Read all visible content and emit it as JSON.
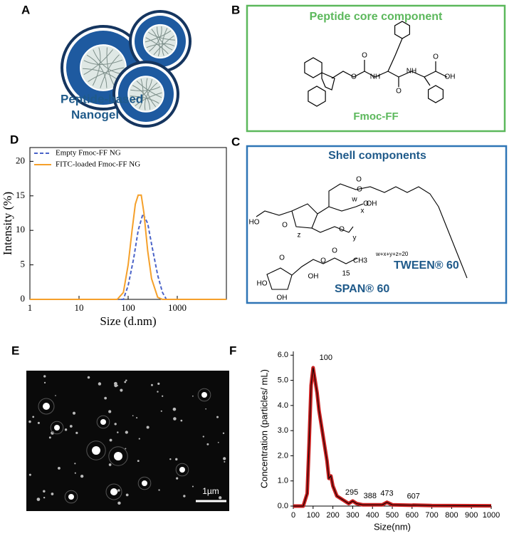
{
  "panel_a": {
    "label": "A",
    "caption": [
      "Peptide-based",
      "Nanogel"
    ]
  },
  "panel_b": {
    "label": "B",
    "title": "Peptide core component",
    "compound": "Fmoc-FF",
    "atoms": [
      "O",
      "O",
      "NH",
      "O",
      "NH",
      "O",
      "OH"
    ]
  },
  "panel_c": {
    "label": "C",
    "title": "Shell components",
    "tween_atoms": [
      "O",
      "O",
      "w",
      "O",
      "x",
      "OH",
      "HO",
      "O",
      "z",
      "O",
      "y"
    ],
    "formula": "w+x+y+z=20",
    "tween_name": "TWEEN® 60",
    "span_atoms": [
      "O",
      "O",
      "15",
      "CH3",
      "O",
      "OH",
      "HO",
      "OH"
    ],
    "span_name": "SPAN® 60"
  },
  "panel_e": {
    "label": "E",
    "scale_bar": "1µm"
  },
  "chart_data": [
    {
      "panel_label": "D",
      "type": "line",
      "xlabel": "Size (d.nm)",
      "ylabel": "Intensity (%)",
      "xscale": "log",
      "xlim": [
        1,
        10000
      ],
      "ylim": [
        0,
        22
      ],
      "xticks": [
        1,
        10,
        100,
        1000
      ],
      "yticks": [
        0,
        5,
        10,
        15,
        20
      ],
      "legend": "upper left",
      "series": [
        {
          "name": "Empty Fmoc-FF NG",
          "color": "#4a63c8",
          "linestyle": "dashed",
          "x": [
            1,
            80,
            100,
            130,
            160,
            200,
            250,
            300,
            400,
            500,
            600,
            10000
          ],
          "values": [
            0,
            0,
            2,
            6,
            10,
            12.4,
            11,
            8,
            3.5,
            1,
            0,
            0
          ]
        },
        {
          "name": "FITC-loaded Fmoc-FF NG",
          "color": "#f5a02a",
          "linestyle": "solid",
          "x": [
            1,
            60,
            80,
            100,
            120,
            140,
            160,
            185,
            210,
            250,
            300,
            400,
            500,
            10000
          ],
          "values": [
            0,
            0,
            1,
            5,
            10,
            13.8,
            15.1,
            15.1,
            12.5,
            7,
            3,
            0.3,
            0,
            0
          ]
        }
      ]
    },
    {
      "panel_label": "F",
      "type": "line",
      "xlabel": "Size(nm)",
      "ylabel": "Concentration (particles/ mL)",
      "xlim": [
        0,
        1000
      ],
      "ylim": [
        0,
        6.15
      ],
      "xticks": [
        0,
        100,
        200,
        300,
        400,
        500,
        600,
        700,
        800,
        900,
        1000
      ],
      "yticks": [
        {
          "value": 0,
          "label": "0.0"
        },
        {
          "value": 1,
          "label": "1.0"
        },
        {
          "value": 2,
          "label": "2.0"
        },
        {
          "value": 3,
          "label": "3.0"
        },
        {
          "value": 4,
          "label": "4.0"
        },
        {
          "value": 5,
          "label": "5.0"
        },
        {
          "value": 6,
          "label": "6.0"
        }
      ],
      "peak_labels": [
        100,
        295,
        388,
        473,
        607
      ],
      "series": [
        {
          "color": "#000000",
          "band_color": "#c81e1e",
          "x": [
            0,
            50,
            70,
            80,
            90,
            100,
            110,
            120,
            130,
            150,
            170,
            180,
            190,
            200,
            220,
            250,
            280,
            300,
            320,
            350,
            400,
            450,
            473,
            500,
            600,
            607,
            700,
            1000
          ],
          "values": [
            0,
            0,
            0.5,
            2.5,
            4.8,
            5.5,
            5,
            4.5,
            3.8,
            2.8,
            1.8,
            1.1,
            1.2,
            0.8,
            0.4,
            0.25,
            0.1,
            0.2,
            0.1,
            0.05,
            0.05,
            0.05,
            0.15,
            0.05,
            0.03,
            0.04,
            0.02,
            0.01
          ]
        }
      ]
    }
  ]
}
